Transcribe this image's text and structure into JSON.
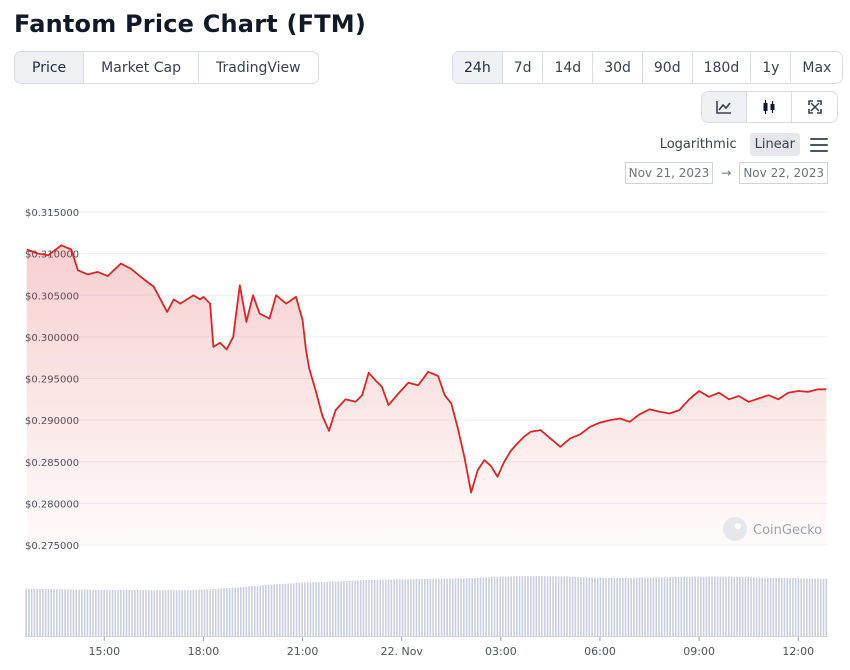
{
  "title": "Fantom Price Chart (FTM)",
  "view_tabs": [
    {
      "label": "Price",
      "active": true
    },
    {
      "label": "Market Cap",
      "active": false
    },
    {
      "label": "TradingView",
      "active": false
    }
  ],
  "range_tabs": [
    {
      "label": "24h",
      "active": true
    },
    {
      "label": "7d",
      "active": false
    },
    {
      "label": "14d",
      "active": false
    },
    {
      "label": "30d",
      "active": false
    },
    {
      "label": "90d",
      "active": false
    },
    {
      "label": "180d",
      "active": false
    },
    {
      "label": "1y",
      "active": false
    },
    {
      "label": "Max",
      "active": false
    }
  ],
  "chart_type_icons": [
    "line-chart-icon",
    "candlestick-icon",
    "expand-icon"
  ],
  "scale": {
    "logarithmic": "Logarithmic",
    "linear": "Linear",
    "active": "linear"
  },
  "date_range": {
    "from": "Nov 21, 2023",
    "arrow": "→",
    "to": "Nov 22, 2023"
  },
  "watermark": "CoinGecko",
  "colors": {
    "line": "#dc2626",
    "volume": "#c9cfe0",
    "grid": "#eceef1"
  },
  "chart_data": {
    "type": "line",
    "ylabel": "",
    "xlabel": "",
    "ylim": [
      0.275,
      0.315
    ],
    "yticks": [
      0.275,
      0.28,
      0.285,
      0.29,
      0.295,
      0.3,
      0.305,
      0.31,
      0.315
    ],
    "ytick_labels": [
      "$0.275000",
      "$0.280000",
      "$0.285000",
      "$0.290000",
      "$0.295000",
      "$0.300000",
      "$0.305000",
      "$0.310000",
      "$0.315000"
    ],
    "xlim_hours": [
      12.6,
      36.9
    ],
    "xticks": [
      {
        "h": 15,
        "label": "15:00"
      },
      {
        "h": 18,
        "label": "18:00"
      },
      {
        "h": 21,
        "label": "21:00"
      },
      {
        "h": 24,
        "label": "22. Nov"
      },
      {
        "h": 27,
        "label": "03:00"
      },
      {
        "h": 30,
        "label": "06:00"
      },
      {
        "h": 33,
        "label": "09:00"
      },
      {
        "h": 36,
        "label": "12:00"
      }
    ],
    "series": [
      {
        "values_x_hours": [
          12.65,
          13.0,
          13.3,
          13.7,
          14.0,
          14.2,
          14.5,
          14.8,
          15.1,
          15.5,
          15.8,
          16.2,
          16.5,
          16.9,
          17.1,
          17.3,
          17.7,
          17.9,
          18.0,
          18.2,
          18.3,
          18.5,
          18.7,
          18.9,
          19.1,
          19.3,
          19.5,
          19.7,
          20.0,
          20.2,
          20.5,
          20.8,
          21.0,
          21.1,
          21.2,
          21.4,
          21.6,
          21.8,
          22.0,
          22.3,
          22.6,
          22.8,
          23.0,
          23.2,
          23.4,
          23.6,
          23.9,
          24.2,
          24.5,
          24.8,
          25.1,
          25.3,
          25.5,
          25.7,
          25.9,
          26.1,
          26.3,
          26.5,
          26.7,
          26.9,
          27.1,
          27.3,
          27.5,
          27.7,
          27.9,
          28.2,
          28.5,
          28.8,
          29.1,
          29.4,
          29.7,
          30.0,
          30.3,
          30.6,
          30.9,
          31.2,
          31.5,
          31.8,
          32.1,
          32.4,
          32.7,
          33.0,
          33.3,
          33.6,
          33.9,
          34.2,
          34.5,
          34.8,
          35.1,
          35.4,
          35.7,
          36.0,
          36.3,
          36.6,
          36.85
        ],
        "values": [
          0.3105,
          0.31,
          0.3098,
          0.311,
          0.3105,
          0.308,
          0.3075,
          0.3078,
          0.3073,
          0.3088,
          0.3082,
          0.3069,
          0.306,
          0.303,
          0.3045,
          0.304,
          0.305,
          0.3045,
          0.3048,
          0.304,
          0.2988,
          0.2993,
          0.2985,
          0.3,
          0.3062,
          0.3018,
          0.305,
          0.3028,
          0.3022,
          0.305,
          0.304,
          0.3048,
          0.302,
          0.2985,
          0.2962,
          0.2935,
          0.2905,
          0.2887,
          0.2912,
          0.2925,
          0.2922,
          0.293,
          0.2957,
          0.2948,
          0.294,
          0.2918,
          0.2932,
          0.2945,
          0.2942,
          0.2958,
          0.2953,
          0.293,
          0.292,
          0.289,
          0.2855,
          0.2813,
          0.284,
          0.2852,
          0.2845,
          0.2832,
          0.285,
          0.2863,
          0.2872,
          0.288,
          0.2886,
          0.2888,
          0.2878,
          0.2868,
          0.2878,
          0.2883,
          0.2892,
          0.2897,
          0.29,
          0.2902,
          0.2898,
          0.2907,
          0.2913,
          0.291,
          0.2908,
          0.2912,
          0.2925,
          0.2935,
          0.2928,
          0.2933,
          0.2925,
          0.2929,
          0.2922,
          0.2926,
          0.293,
          0.2925,
          0.2933,
          0.2935,
          0.2934,
          0.2937,
          0.2937
        ]
      }
    ],
    "volume_series": {
      "values_x_hours": [
        12.6,
        15.0,
        17.5,
        18.5,
        20.0,
        21.0,
        22.0,
        23.0,
        24.0,
        25.0,
        26.0,
        27.0,
        28.0,
        29.0,
        30.0,
        31.0,
        32.0,
        33.0,
        34.0,
        35.0,
        36.0,
        36.9
      ],
      "values_relative": [
        0.86,
        0.84,
        0.83,
        0.86,
        0.93,
        0.97,
        0.99,
        1.02,
        1.03,
        1.04,
        1.05,
        1.08,
        1.09,
        1.08,
        1.06,
        1.06,
        1.07,
        1.08,
        1.08,
        1.06,
        1.05,
        1.04
      ]
    }
  }
}
